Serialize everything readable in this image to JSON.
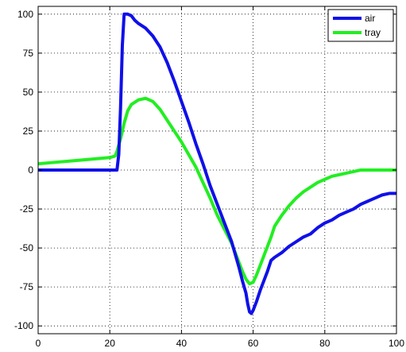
{
  "chart_data": {
    "type": "line",
    "title": "",
    "xlabel": "",
    "ylabel": "",
    "xlim": [
      0,
      100
    ],
    "ylim": [
      -105,
      105
    ],
    "xticks": [
      0,
      20,
      40,
      60,
      80,
      100
    ],
    "xtick_labels": [
      "0",
      "20",
      "40",
      "60",
      "80",
      "100"
    ],
    "yticks": [
      100,
      75,
      50,
      25,
      0,
      -25,
      -50,
      -75,
      -100
    ],
    "ytick_labels": [
      "100",
      "75",
      "50",
      "25",
      "0",
      "-25",
      "-50",
      "-75",
      "-100"
    ],
    "grid": true,
    "legend_position": "top-right",
    "series": [
      {
        "name": "air",
        "color": "#1010e8",
        "x": [
          0,
          21.5,
          22,
          22.5,
          23,
          23.5,
          24,
          25,
          26,
          27,
          28,
          30,
          32,
          34,
          36,
          38,
          40,
          42,
          44,
          46,
          48,
          50,
          52,
          54,
          55,
          56,
          57,
          58,
          58.5,
          59,
          59.5,
          60,
          61,
          62,
          63,
          64,
          65,
          66,
          68,
          70,
          72,
          74,
          76,
          78,
          80,
          82,
          84,
          86,
          88,
          90,
          92,
          94,
          96,
          98,
          100
        ],
        "y": [
          0,
          0,
          0,
          10,
          40,
          80,
          100,
          100,
          99,
          96,
          94,
          91,
          86,
          79,
          69,
          57,
          44,
          31,
          17,
          4,
          -10,
          -22,
          -34,
          -46,
          -54,
          -62,
          -71,
          -79,
          -86,
          -91,
          -92,
          -90,
          -84,
          -77,
          -71,
          -65,
          -58,
          -56,
          -53,
          -49,
          -46,
          -43,
          -41,
          -37,
          -34,
          -32,
          -29,
          -27,
          -25,
          -22,
          -20,
          -18,
          -16,
          -15,
          -15
        ]
      },
      {
        "name": "tray",
        "color": "#22ee22",
        "x": [
          0,
          5,
          10,
          15,
          20,
          21.5,
          22,
          23,
          24,
          25,
          26,
          28,
          30,
          32,
          34,
          36,
          38,
          40,
          42,
          44,
          46,
          48,
          50,
          52,
          54,
          55,
          56,
          57,
          58,
          59,
          60,
          61,
          62,
          63,
          64,
          65,
          66,
          68,
          70,
          72,
          74,
          76,
          78,
          80,
          82,
          84,
          86,
          88,
          90,
          92,
          94,
          96,
          98,
          100
        ],
        "y": [
          4,
          5,
          6,
          7,
          8,
          9,
          12,
          20,
          30,
          38,
          42,
          45,
          46,
          44,
          39,
          32,
          25,
          18,
          10,
          2,
          -8,
          -18,
          -29,
          -38,
          -47,
          -53,
          -59,
          -65,
          -70,
          -73,
          -72,
          -67,
          -61,
          -55,
          -49,
          -43,
          -36,
          -29,
          -23,
          -18,
          -14,
          -11,
          -8,
          -6,
          -4,
          -3,
          -2,
          -1,
          0,
          0,
          0,
          0,
          0,
          0
        ]
      }
    ]
  }
}
